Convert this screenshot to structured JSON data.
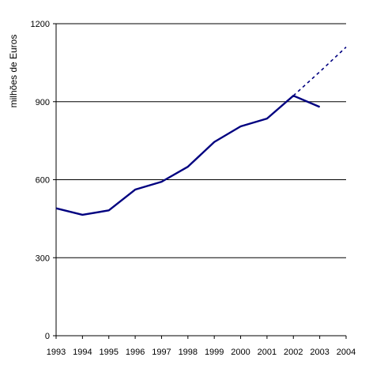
{
  "chart_data": {
    "type": "line",
    "title": "",
    "xlabel": "",
    "ylabel": "milhões de Euros",
    "x": [
      "1993",
      "1994",
      "1995",
      "1996",
      "1997",
      "1998",
      "1999",
      "2000",
      "2001",
      "2002",
      "2003",
      "2004"
    ],
    "ylim": [
      0,
      1200
    ],
    "yticks": [
      0,
      300,
      600,
      900,
      1200
    ],
    "grid": "horizontal",
    "legend": "none",
    "series": [
      {
        "style": "solid",
        "color": "#000080",
        "points": [
          {
            "x": "1993",
            "y": 490
          },
          {
            "x": "1994",
            "y": 465
          },
          {
            "x": "1995",
            "y": 482
          },
          {
            "x": "1996",
            "y": 562
          },
          {
            "x": "1997",
            "y": 592
          },
          {
            "x": "1998",
            "y": 650
          },
          {
            "x": "1999",
            "y": 745
          },
          {
            "x": "2000",
            "y": 805
          },
          {
            "x": "2001",
            "y": 835
          },
          {
            "x": "2002",
            "y": 923
          },
          {
            "x": "2003",
            "y": 880
          }
        ]
      },
      {
        "style": "dashed",
        "color": "#000080",
        "points": [
          {
            "x": "2002",
            "y": 923
          },
          {
            "x": "2003",
            "y": 1015
          },
          {
            "x": "2004",
            "y": 1110
          }
        ]
      }
    ]
  }
}
